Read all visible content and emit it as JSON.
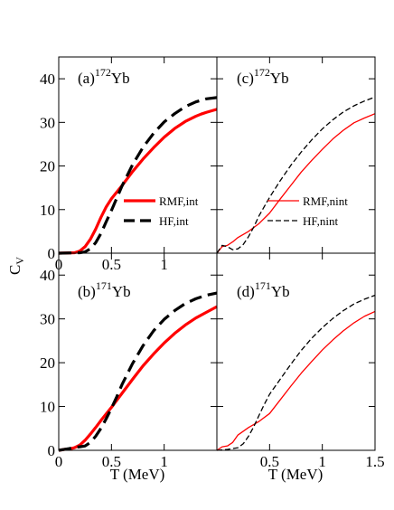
{
  "figure": {
    "ylabel_main": "C",
    "ylabel_sub": "V",
    "xlabel_left": "T (MeV)",
    "xlabel_right": "T (MeV)"
  },
  "chart_data": [
    {
      "type": "line",
      "panel": "a",
      "tag_prefix": "(a)",
      "tag_mass": "172",
      "tag_element": "Yb",
      "xlim": [
        0,
        1.5
      ],
      "ylim": [
        0,
        45
      ],
      "xticks": [
        0,
        0.5,
        1
      ],
      "yticks": [
        0,
        10,
        20,
        30,
        40
      ],
      "xtick_labels": [
        "0",
        "0.5",
        "1"
      ],
      "ytick_labels": [
        "0",
        "10",
        "20",
        "30",
        "40"
      ],
      "legend": "center",
      "series": [
        {
          "name": "RMF,int",
          "color": "#ff0000",
          "style": "solid",
          "width": "thick",
          "x": [
            0,
            0.15,
            0.2,
            0.25,
            0.3,
            0.35,
            0.4,
            0.45,
            0.5,
            0.6,
            0.7,
            0.8,
            0.9,
            1.0,
            1.1,
            1.2,
            1.3,
            1.35,
            1.4,
            1.5
          ],
          "y": [
            0,
            0.1,
            0.5,
            1.5,
            3.2,
            5.5,
            8.2,
            10.6,
            12.5,
            15.5,
            18.7,
            21.6,
            24.2,
            26.6,
            28.6,
            30.2,
            31.4,
            31.9,
            32.3,
            33.0
          ]
        },
        {
          "name": "HF,int",
          "color": "#000000",
          "style": "dashed",
          "width": "thick",
          "x": [
            0,
            0.2,
            0.25,
            0.3,
            0.35,
            0.4,
            0.45,
            0.5,
            0.55,
            0.6,
            0.7,
            0.8,
            0.9,
            1.0,
            1.1,
            1.2,
            1.3,
            1.4,
            1.5
          ],
          "y": [
            0,
            0.1,
            0.3,
            1.0,
            2.4,
            4.5,
            7.2,
            9.8,
            12.6,
            15.4,
            20.3,
            24.3,
            27.5,
            30.1,
            32.0,
            33.6,
            34.7,
            35.4,
            35.7
          ]
        }
      ]
    },
    {
      "type": "line",
      "panel": "c",
      "tag_prefix": "(c)",
      "tag_mass": "172",
      "tag_element": "Yb",
      "xlim": [
        0,
        1.5
      ],
      "ylim": [
        0,
        45
      ],
      "xticks": [
        0,
        0.5,
        1,
        1.5
      ],
      "yticks": [
        0,
        10,
        20,
        30,
        40
      ],
      "legend": "center",
      "series": [
        {
          "name": "RMF,nint",
          "color": "#ff0000",
          "style": "solid",
          "width": "thin",
          "x": [
            0,
            0.05,
            0.1,
            0.15,
            0.2,
            0.3,
            0.4,
            0.5,
            0.6,
            0.7,
            0.8,
            0.9,
            1.0,
            1.1,
            1.2,
            1.3,
            1.4,
            1.5
          ],
          "y": [
            0,
            1.5,
            1.8,
            2.6,
            3.6,
            5.0,
            6.8,
            9.2,
            12.4,
            15.5,
            18.6,
            21.3,
            23.8,
            26.2,
            28.2,
            29.9,
            31.0,
            32.0
          ]
        },
        {
          "name": "HF,nint",
          "color": "#000000",
          "style": "dashed",
          "width": "thin",
          "x": [
            0,
            0.05,
            0.1,
            0.15,
            0.2,
            0.25,
            0.3,
            0.35,
            0.4,
            0.5,
            0.6,
            0.7,
            0.8,
            0.9,
            1.0,
            1.1,
            1.2,
            1.3,
            1.4,
            1.5
          ],
          "y": [
            0,
            1.8,
            1.5,
            0.8,
            1.0,
            2.0,
            3.8,
            6.0,
            8.6,
            12.8,
            16.6,
            20.1,
            23.2,
            26.0,
            28.5,
            30.6,
            32.4,
            33.8,
            34.9,
            35.8
          ]
        }
      ]
    },
    {
      "type": "line",
      "panel": "b",
      "tag_prefix": "(b)",
      "tag_mass": "171",
      "tag_element": "Yb",
      "xlim": [
        0,
        1.5
      ],
      "ylim": [
        0,
        45
      ],
      "xticks": [
        0,
        0.5,
        1
      ],
      "yticks": [
        0,
        10,
        20,
        30,
        40
      ],
      "series": [
        {
          "name": "RMF,int",
          "color": "#ff0000",
          "style": "solid",
          "width": "thick",
          "x": [
            0,
            0.05,
            0.1,
            0.15,
            0.2,
            0.25,
            0.3,
            0.35,
            0.4,
            0.5,
            0.6,
            0.7,
            0.8,
            0.9,
            1.0,
            1.1,
            1.2,
            1.3,
            1.4,
            1.5
          ],
          "y": [
            0,
            0.2,
            0.3,
            0.6,
            1.2,
            2.3,
            3.7,
            5.2,
            6.8,
            9.8,
            13.0,
            16.2,
            19.3,
            22.0,
            24.5,
            26.7,
            28.6,
            30.2,
            31.5,
            32.8
          ]
        },
        {
          "name": "HF,int",
          "color": "#000000",
          "style": "dashed",
          "width": "thick",
          "x": [
            0,
            0.1,
            0.15,
            0.2,
            0.25,
            0.3,
            0.35,
            0.4,
            0.45,
            0.5,
            0.55,
            0.6,
            0.7,
            0.8,
            0.9,
            1.0,
            1.1,
            1.2,
            1.3,
            1.4,
            1.5
          ],
          "y": [
            0,
            0.4,
            0.7,
            0.8,
            1.0,
            1.8,
            3.2,
            5.0,
            7.2,
            9.6,
            12.2,
            15.0,
            19.8,
            23.9,
            27.3,
            29.9,
            31.9,
            33.5,
            34.6,
            35.4,
            35.9
          ]
        }
      ]
    },
    {
      "type": "line",
      "panel": "d",
      "tag_prefix": "(d)",
      "tag_mass": "171",
      "tag_element": "Yb",
      "xlim": [
        0,
        1.5
      ],
      "ylim": [
        0,
        45
      ],
      "xticks": [
        0,
        0.5,
        1,
        1.5
      ],
      "yticks": [
        0,
        10,
        20,
        30,
        40
      ],
      "xtick_labels": [
        "",
        "0.5",
        "1",
        "1.5"
      ],
      "series": [
        {
          "name": "RMF,nint",
          "color": "#ff0000",
          "style": "solid",
          "width": "thin",
          "x": [
            0,
            0.05,
            0.1,
            0.15,
            0.2,
            0.3,
            0.4,
            0.5,
            0.6,
            0.7,
            0.8,
            0.9,
            1.0,
            1.1,
            1.2,
            1.3,
            1.4,
            1.5
          ],
          "y": [
            0,
            0.8,
            1.0,
            1.8,
            3.5,
            5.2,
            6.6,
            8.4,
            11.5,
            14.6,
            17.6,
            20.3,
            22.9,
            25.2,
            27.3,
            29.1,
            30.6,
            31.7
          ]
        },
        {
          "name": "HF,nint",
          "color": "#000000",
          "style": "dashed",
          "width": "thin",
          "x": [
            0,
            0.1,
            0.15,
            0.2,
            0.25,
            0.3,
            0.35,
            0.4,
            0.45,
            0.5,
            0.6,
            0.7,
            0.8,
            0.9,
            1.0,
            1.1,
            1.2,
            1.3,
            1.4,
            1.5
          ],
          "y": [
            0,
            0.2,
            0.4,
            0.6,
            1.5,
            3.2,
            5.4,
            8.0,
            10.5,
            12.8,
            16.2,
            19.6,
            22.8,
            25.6,
            28.0,
            30.1,
            31.9,
            33.4,
            34.5,
            35.4
          ]
        }
      ]
    }
  ]
}
